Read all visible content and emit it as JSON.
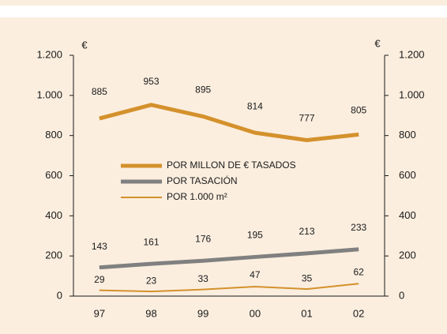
{
  "chart_data": {
    "type": "line",
    "y_label": "€",
    "y2_label": "€",
    "categories": [
      "97",
      "98",
      "99",
      "00",
      "01",
      "02"
    ],
    "series": [
      {
        "name": "POR MILLON DE € TASADOS",
        "color": "#d4912c",
        "width": 5,
        "values": [
          885,
          953,
          895,
          814,
          777,
          805
        ]
      },
      {
        "name": "POR TASACIÓN",
        "color": "#808080",
        "width": 5,
        "values": [
          143,
          161,
          176,
          195,
          213,
          233
        ]
      },
      {
        "name": "POR 1.000 m²",
        "color": "#d4912c",
        "width": 2,
        "values": [
          29,
          23,
          33,
          47,
          35,
          62
        ]
      }
    ],
    "ylim": [
      0,
      1200
    ],
    "yticks": [
      0,
      200,
      400,
      600,
      800,
      {
        "value": 1000,
        "label": "1.000"
      },
      {
        "value": 1200,
        "label": "1.200"
      }
    ],
    "y2lim": [
      0,
      1200
    ],
    "y2ticks": [
      0,
      200,
      400,
      600,
      800,
      {
        "value": 1000,
        "label": "1.000"
      },
      {
        "value": 1200,
        "label": "1.200"
      }
    ]
  }
}
